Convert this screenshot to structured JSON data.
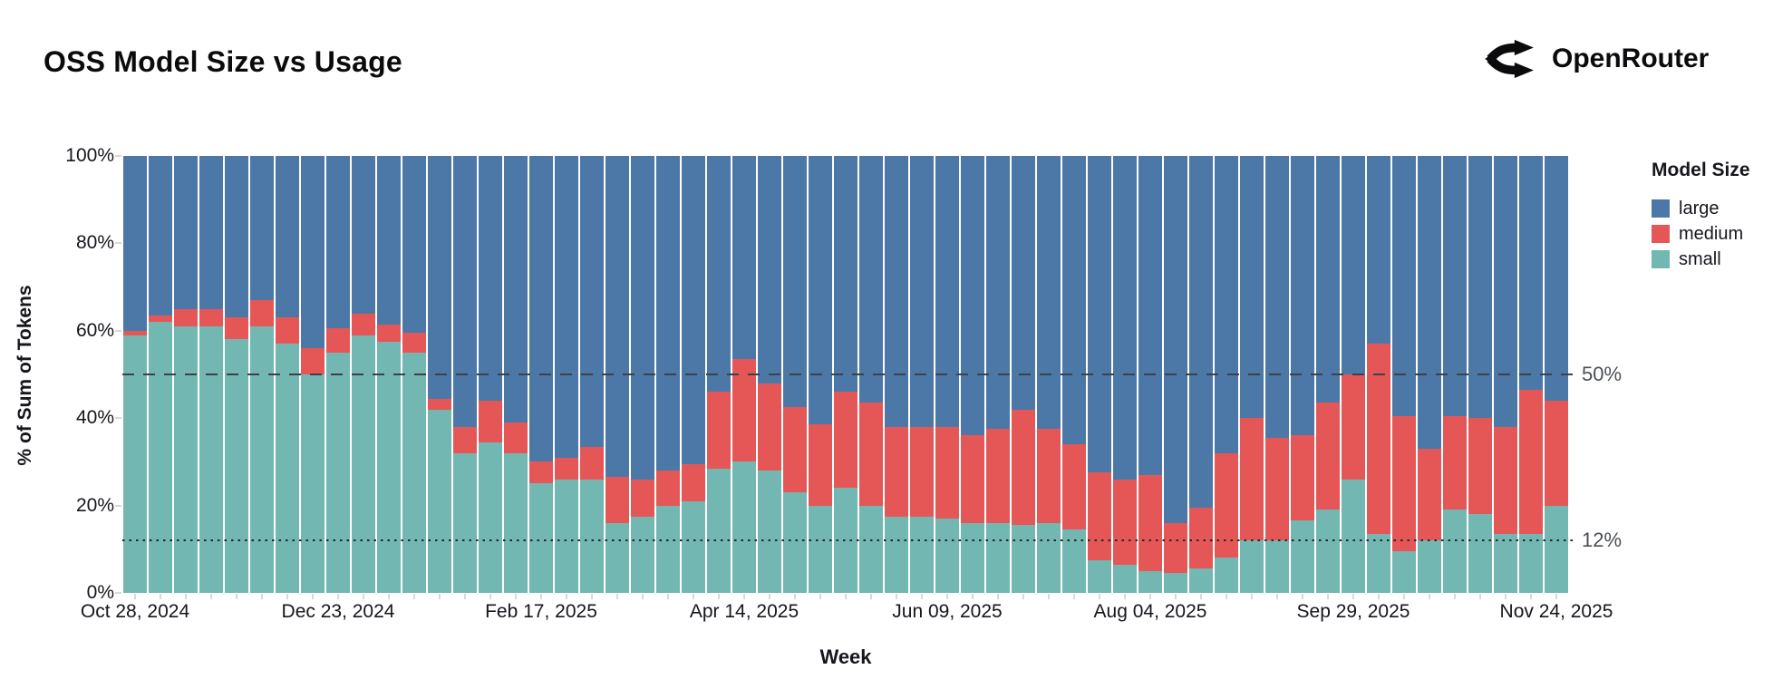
{
  "title": "OSS Model Size vs Usage",
  "brand": {
    "name": "OpenRouter",
    "icon": "route-fork-icon"
  },
  "chart_data": {
    "type": "bar",
    "stacked": true,
    "normalized_percent": true,
    "title": "OSS Model Size vs Usage",
    "xlabel": "Week",
    "ylabel": "% of Sum of Tokens",
    "ylim": [
      0,
      100
    ],
    "y_ticks": [
      0,
      20,
      40,
      60,
      80,
      100
    ],
    "y_tick_labels": [
      "0%",
      "20%",
      "40%",
      "60%",
      "80%",
      "100%"
    ],
    "x_tick_indices": [
      0,
      8,
      16,
      24,
      32,
      40,
      48,
      56
    ],
    "x_tick_labels": [
      "Oct 28, 2024",
      "Dec 23, 2024",
      "Feb 17, 2025",
      "Apr 14, 2025",
      "Jun 09, 2025",
      "Aug 04, 2025",
      "Sep 29, 2025",
      "Nov 24, 2025"
    ],
    "grid": false,
    "legend": {
      "title": "Model Size",
      "position": "right",
      "entries": [
        {
          "label": "large",
          "color": "#4C78A8"
        },
        {
          "label": "medium",
          "color": "#E45756"
        },
        {
          "label": "small",
          "color": "#72B7B2"
        }
      ]
    },
    "reference_lines": [
      {
        "value": 50,
        "label": "50%",
        "style": "dashed",
        "color": "#3c4049"
      },
      {
        "value": 12,
        "label": "12%",
        "style": "dotted",
        "color": "#23262c"
      }
    ],
    "categories": [
      "Oct 28, 2024",
      "Nov 04, 2024",
      "Nov 11, 2024",
      "Nov 18, 2024",
      "Nov 25, 2024",
      "Dec 02, 2024",
      "Dec 09, 2024",
      "Dec 16, 2024",
      "Dec 23, 2024",
      "Dec 30, 2024",
      "Jan 06, 2025",
      "Jan 13, 2025",
      "Jan 20, 2025",
      "Jan 27, 2025",
      "Feb 03, 2025",
      "Feb 10, 2025",
      "Feb 17, 2025",
      "Feb 24, 2025",
      "Mar 03, 2025",
      "Mar 10, 2025",
      "Mar 17, 2025",
      "Mar 24, 2025",
      "Mar 31, 2025",
      "Apr 07, 2025",
      "Apr 14, 2025",
      "Apr 21, 2025",
      "Apr 28, 2025",
      "May 05, 2025",
      "May 12, 2025",
      "May 19, 2025",
      "May 26, 2025",
      "Jun 02, 2025",
      "Jun 09, 2025",
      "Jun 16, 2025",
      "Jun 23, 2025",
      "Jun 30, 2025",
      "Jul 07, 2025",
      "Jul 14, 2025",
      "Jul 21, 2025",
      "Jul 28, 2025",
      "Aug 04, 2025",
      "Aug 11, 2025",
      "Aug 18, 2025",
      "Aug 25, 2025",
      "Sep 01, 2025",
      "Sep 08, 2025",
      "Sep 15, 2025",
      "Sep 22, 2025",
      "Sep 29, 2025",
      "Oct 06, 2025",
      "Oct 13, 2025",
      "Oct 20, 2025",
      "Oct 27, 2025",
      "Nov 03, 2025",
      "Nov 10, 2025",
      "Nov 17, 2025",
      "Nov 24, 2025"
    ],
    "series": [
      {
        "name": "small",
        "color": "#72B7B2",
        "values": [
          59,
          62,
          61,
          61,
          58,
          61,
          57,
          50,
          55,
          59,
          57.5,
          55,
          42,
          32,
          34.5,
          32,
          25,
          26,
          26,
          16,
          17.5,
          20,
          21,
          28.5,
          30,
          28,
          23,
          20,
          24,
          20,
          17.5,
          17.5,
          17,
          16,
          16,
          15.5,
          16,
          14.5,
          7.5,
          6.5,
          5,
          4.5,
          5.5,
          8,
          12,
          12,
          16.5,
          19,
          26,
          13.5,
          9.5,
          12,
          19,
          18,
          13.5,
          13.5,
          20
        ]
      },
      {
        "name": "medium",
        "color": "#E45756",
        "values": [
          1,
          1.5,
          4,
          4,
          5,
          6,
          6,
          6,
          5.5,
          5,
          4,
          4.5,
          2.5,
          6,
          9.5,
          7,
          5,
          5,
          7.5,
          10.5,
          8.5,
          8,
          8.5,
          17.5,
          23.5,
          20,
          19.5,
          18.5,
          22,
          23.5,
          20.5,
          20.5,
          21,
          20,
          21.5,
          26.5,
          21.5,
          19.5,
          20,
          19.5,
          22,
          11.5,
          14,
          24,
          28,
          23.5,
          19.5,
          24.5,
          24,
          43.5,
          31,
          21,
          21.5,
          22,
          24.5,
          33,
          24
        ]
      },
      {
        "name": "large",
        "color": "#4C78A8",
        "values": [
          40,
          36.5,
          35,
          35,
          37,
          33,
          37,
          44,
          39.5,
          36,
          38.5,
          40.5,
          55.5,
          62,
          56,
          61,
          70,
          69,
          66.5,
          73.5,
          74,
          72,
          70.5,
          54,
          46.5,
          52,
          57.5,
          61.5,
          54,
          56.5,
          62,
          62,
          62,
          64,
          62.5,
          58,
          62.5,
          66,
          72.5,
          74,
          73,
          84,
          80.5,
          68,
          60,
          64.5,
          64,
          56.5,
          50,
          43,
          59.5,
          67,
          59.5,
          60,
          62,
          53.5,
          56
        ]
      }
    ]
  }
}
